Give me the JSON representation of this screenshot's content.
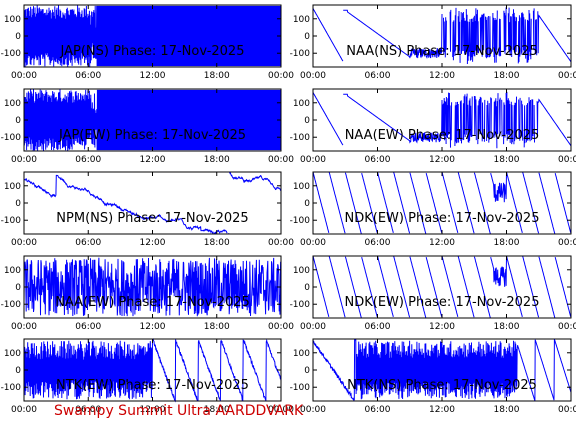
{
  "footer": "Swampy Summit Ultra AARDDVARK",
  "colors": {
    "trace": "#0000ff",
    "footer": "#cc0000",
    "axes": "#000000"
  },
  "x_ticks": [
    "00:00",
    "06:00",
    "12:00",
    "18:00",
    "00:00"
  ],
  "y_ticks": [
    100,
    0,
    -100
  ],
  "chart_data": [
    {
      "type": "line",
      "title": "JAP(NS) Phase: 17-Nov-2025",
      "xlim": [
        0,
        24
      ],
      "ylim": [
        -180,
        180
      ],
      "pattern": "dense_early_fill",
      "x": [
        0,
        6,
        6.5,
        7,
        24
      ],
      "y": [
        120,
        -150,
        150,
        -150,
        150
      ]
    },
    {
      "type": "line",
      "title": "NAA(NS) Phase: 17-Nov-2025",
      "xlim": [
        0,
        24
      ],
      "ylim": [
        -180,
        180
      ],
      "pattern": "saw_then_dense",
      "x": [
        0,
        3,
        9,
        14,
        20,
        24
      ],
      "y": [
        150,
        -150,
        120,
        -100,
        150,
        -80
      ]
    },
    {
      "type": "line",
      "title": "JAP(EW) Phase: 17-Nov-2025",
      "xlim": [
        0,
        24
      ],
      "ylim": [
        -180,
        180
      ],
      "pattern": "dense_early_fill",
      "x": [
        0,
        6,
        7,
        24
      ],
      "y": [
        150,
        -150,
        150,
        -150
      ]
    },
    {
      "type": "line",
      "title": "NAA(EW) Phase: 17-Nov-2025",
      "xlim": [
        0,
        24
      ],
      "ylim": [
        -180,
        180
      ],
      "pattern": "saw_then_dense",
      "x": [
        0,
        3,
        9,
        14,
        20,
        24
      ],
      "y": [
        160,
        -160,
        100,
        -150,
        150,
        -170
      ]
    },
    {
      "type": "line",
      "title": "NPM(NS) Phase: 17-Nov-2025",
      "xlim": [
        0,
        24
      ],
      "ylim": [
        -180,
        180
      ],
      "pattern": "slow_saw",
      "x": [
        0,
        3,
        7,
        10,
        14,
        17,
        20,
        24
      ],
      "y": [
        -150,
        160,
        -150,
        150,
        110,
        -160,
        150,
        -170
      ]
    },
    {
      "type": "line",
      "title": "NDK(EW) Phase: 17-Nov-2025",
      "xlim": [
        0,
        24
      ],
      "ylim": [
        -180,
        180
      ],
      "pattern": "fast_saw",
      "x": [
        0,
        1.5,
        3,
        4.5,
        6,
        7.5,
        9,
        10.5,
        12,
        13.5,
        15,
        16.5,
        18,
        19.5,
        21,
        22.5,
        24
      ],
      "y": [
        150,
        -150,
        150,
        -150,
        150,
        -150,
        150,
        -150,
        150,
        -150,
        150,
        -150,
        150,
        -150,
        150,
        -150,
        150
      ]
    },
    {
      "type": "line",
      "title": "NAA(EW) Phase: 17-Nov-2025",
      "xlim": [
        0,
        24
      ],
      "ylim": [
        -180,
        180
      ],
      "pattern": "dense_noise",
      "x": [
        0,
        24
      ],
      "y": [
        150,
        -150
      ]
    },
    {
      "type": "line",
      "title": "NDK(EW) Phase: 17-Nov-2025",
      "xlim": [
        0,
        24
      ],
      "ylim": [
        -180,
        180
      ],
      "pattern": "fast_saw",
      "x": [
        0,
        1.5,
        3,
        4.5,
        6,
        7.5,
        9,
        10.5,
        12,
        13.5,
        15,
        16.5,
        18,
        19.5,
        21,
        22.5,
        24
      ],
      "y": [
        150,
        -150,
        150,
        -150,
        150,
        -150,
        150,
        -150,
        150,
        -150,
        150,
        -150,
        150,
        -150,
        150,
        -150,
        150
      ]
    },
    {
      "type": "line",
      "title": "NTK(EW) Phase: 17-Nov-2025",
      "xlim": [
        0,
        24
      ],
      "ylim": [
        -180,
        180
      ],
      "pattern": "dense_then_saw",
      "x": [
        0,
        6,
        12,
        18,
        24
      ],
      "y": [
        150,
        -150,
        150,
        -150,
        150
      ]
    },
    {
      "type": "line",
      "title": "NTK(NS) Phase: 17-Nov-2025",
      "xlim": [
        0,
        24
      ],
      "ylim": [
        -180,
        180
      ],
      "pattern": "saw_dense_saw",
      "x": [
        0,
        5,
        12,
        19,
        24
      ],
      "y": [
        -150,
        150,
        -150,
        150,
        -150
      ]
    }
  ]
}
